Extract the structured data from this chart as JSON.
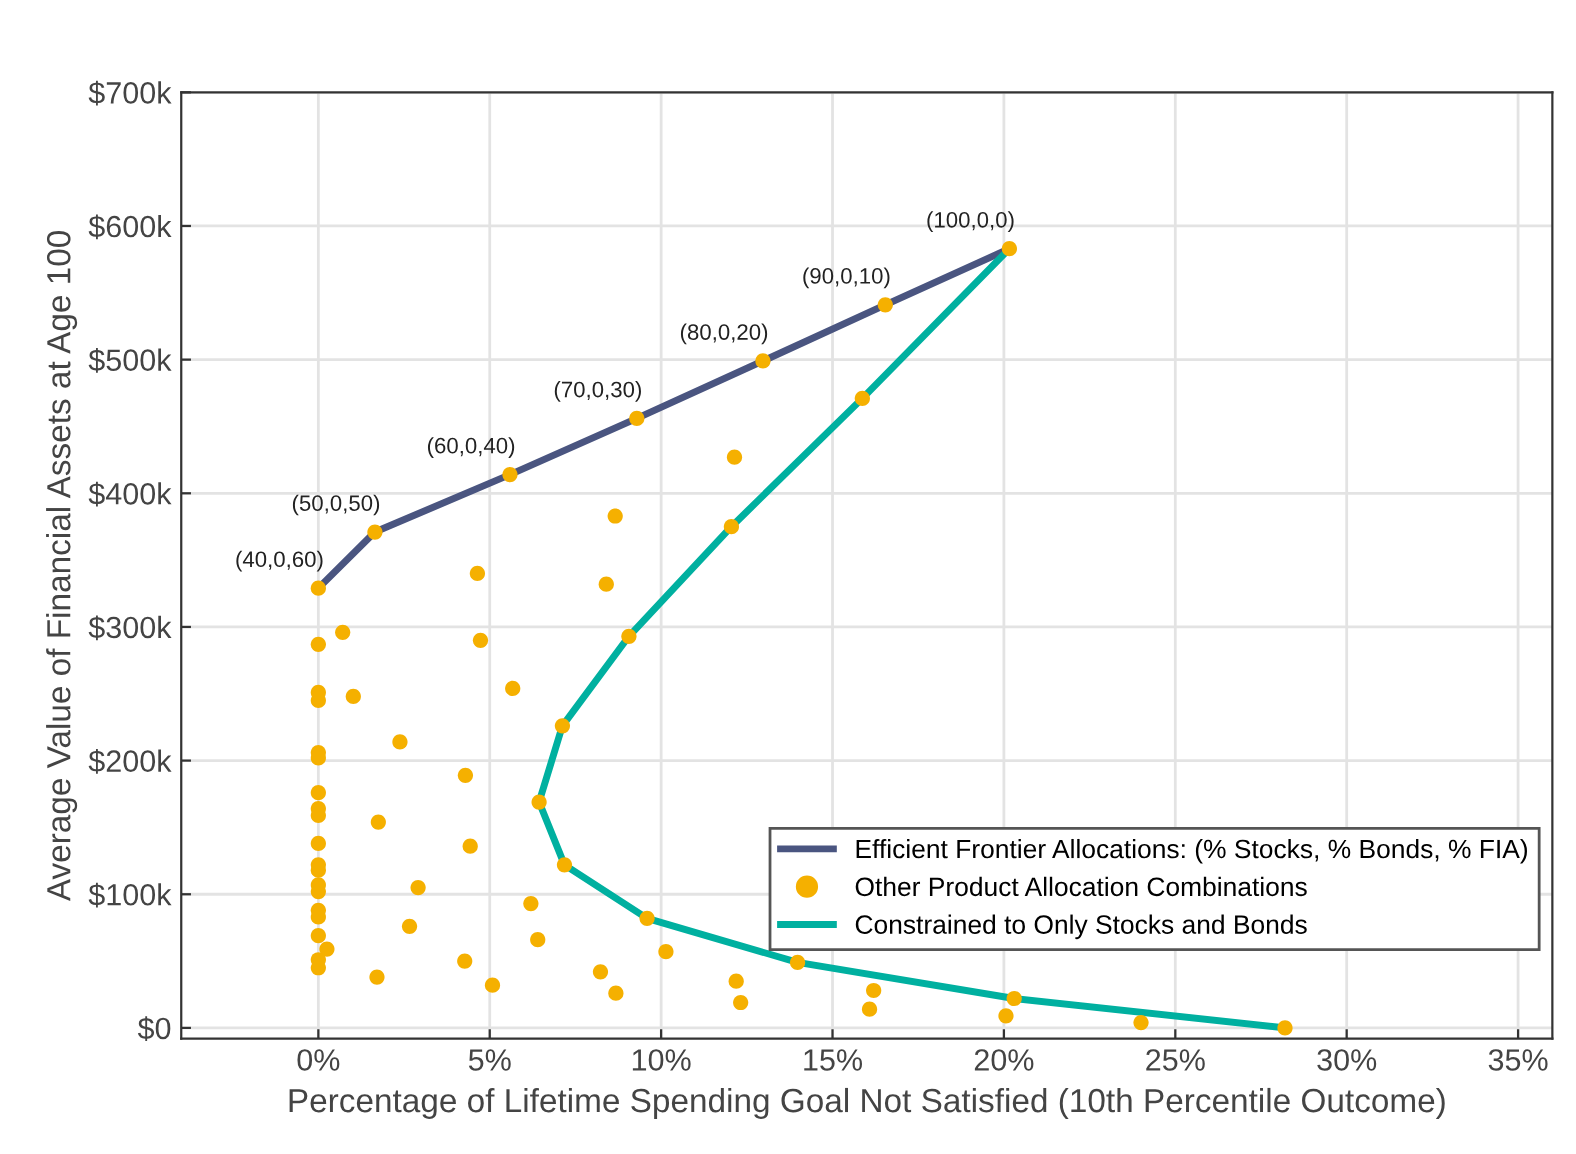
{
  "chart_data": {
    "type": "line",
    "xlabel": "Percentage of Lifetime Spending Goal Not Satisfied (10th Percentile Outcome)",
    "ylabel": "Average Value of Financial Assets at Age 100",
    "xlim": [
      -4,
      36
    ],
    "ylim": [
      -8000,
      700000
    ],
    "xticks": [
      {
        "value": 0,
        "label": "0%"
      },
      {
        "value": 5,
        "label": "5%"
      },
      {
        "value": 10,
        "label": "10%"
      },
      {
        "value": 15,
        "label": "15%"
      },
      {
        "value": 20,
        "label": "20%"
      },
      {
        "value": 25,
        "label": "25%"
      },
      {
        "value": 30,
        "label": "30%"
      },
      {
        "value": 35,
        "label": "35%"
      }
    ],
    "yticks": [
      {
        "value": 0,
        "label": "$0"
      },
      {
        "value": 100000,
        "label": "$100k"
      },
      {
        "value": 200000,
        "label": "$200k"
      },
      {
        "value": 300000,
        "label": "$300k"
      },
      {
        "value": 400000,
        "label": "$400k"
      },
      {
        "value": 500000,
        "label": "$500k"
      },
      {
        "value": 600000,
        "label": "$600k"
      },
      {
        "value": 700000,
        "label": "$700k"
      }
    ],
    "grid": true,
    "legend": "bottom right",
    "series": [
      {
        "name": "Efficient Frontier Allocations: (% Stocks, % Bonds, % FIA)",
        "color": "#4a5580",
        "marker": "none",
        "line_style": "solid",
        "x": [
          0,
          1.65,
          5.59,
          9.29,
          12.97,
          16.54,
          20.16
        ],
        "values": [
          329000,
          371000,
          414000,
          456000,
          499000,
          541000,
          583000
        ]
      },
      {
        "name": "Other Product Allocation Combinations",
        "type": "scatter",
        "color": "#f5b000",
        "marker": "circle",
        "x": [
          0,
          1.65,
          5.59,
          9.29,
          12.97,
          16.54,
          20.16,
          15.87,
          12.05,
          9.06,
          7.12,
          6.44,
          7.18,
          9.59,
          13.98,
          20.3,
          28.2,
          12.14,
          8.66,
          4.64,
          8.4,
          0,
          0.71,
          4.73,
          0,
          0,
          1.02,
          5.67,
          2.38,
          0,
          0,
          4.29,
          0,
          0,
          0,
          1.75,
          4.43,
          0,
          0,
          0,
          0,
          0,
          2.91,
          6.2,
          0,
          0,
          2.66,
          0,
          6.4,
          0.25,
          10.14,
          0,
          0,
          4.27,
          8.23,
          1.71,
          5.08,
          8.68,
          12.19,
          12.32,
          16.2,
          16.08,
          20.06,
          24.0
        ],
        "values": [
          329000,
          371000,
          414000,
          456000,
          499000,
          541000,
          583000,
          471000,
          375000,
          293000,
          226000,
          169000,
          122000,
          82000,
          49000,
          22000,
          0,
          427000,
          383000,
          340000,
          332000,
          287000,
          296000,
          290000,
          251000,
          245000,
          248000,
          254000,
          214000,
          206000,
          202000,
          189000,
          176000,
          164000,
          159000,
          154000,
          136000,
          138000,
          122000,
          118000,
          107000,
          102000,
          105000,
          93000,
          88000,
          83000,
          76000,
          69000,
          66000,
          59000,
          57000,
          51000,
          45000,
          50000,
          42000,
          38000,
          32000,
          26000,
          35000,
          19000,
          28000,
          14000,
          9000,
          4000
        ]
      },
      {
        "name": "Constrained to Only Stocks and Bonds",
        "color": "#00b0a0",
        "marker": "none",
        "line_style": "solid",
        "x": [
          20.16,
          15.87,
          12.05,
          9.06,
          7.12,
          6.44,
          7.18,
          9.59,
          13.98,
          20.3,
          28.2
        ],
        "values": [
          583000,
          471000,
          375000,
          293000,
          226000,
          169000,
          122000,
          82000,
          49000,
          22000,
          0
        ]
      }
    ],
    "annotations": [
      {
        "text": "(40,0,60)",
        "x": 0,
        "y": 329000
      },
      {
        "text": "(50,0,50)",
        "x": 1.65,
        "y": 371000
      },
      {
        "text": "(60,0,40)",
        "x": 5.59,
        "y": 414000
      },
      {
        "text": "(70,0,30)",
        "x": 9.29,
        "y": 456000
      },
      {
        "text": "(80,0,20)",
        "x": 12.97,
        "y": 499000
      },
      {
        "text": "(90,0,10)",
        "x": 16.54,
        "y": 541000
      },
      {
        "text": "(100,0,0)",
        "x": 20.16,
        "y": 583000
      }
    ]
  }
}
